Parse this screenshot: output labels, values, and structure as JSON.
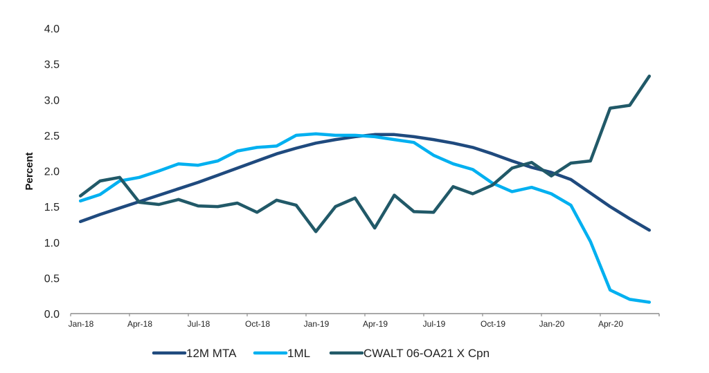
{
  "chart_data": {
    "type": "line",
    "title": "",
    "xlabel": "",
    "ylabel": "Percent",
    "ylim": [
      0,
      4.0
    ],
    "yticks": [
      "0.0",
      "0.5",
      "1.0",
      "1.5",
      "2.0",
      "2.5",
      "3.0",
      "3.5",
      "4.0"
    ],
    "grid": false,
    "legend_position": "bottom",
    "x": [
      "Jan-18",
      "Feb-18",
      "Mar-18",
      "Apr-18",
      "May-18",
      "Jun-18",
      "Jul-18",
      "Aug-18",
      "Sep-18",
      "Oct-18",
      "Nov-18",
      "Dec-18",
      "Jan-19",
      "Feb-19",
      "Mar-19",
      "Apr-19",
      "May-19",
      "Jun-19",
      "Jul-19",
      "Aug-19",
      "Sep-19",
      "Oct-19",
      "Nov-19",
      "Dec-19",
      "Jan-20",
      "Feb-20",
      "Mar-20",
      "Apr-20",
      "May-20",
      "Jun-20"
    ],
    "xtick_labels": [
      "Jan-18",
      "Apr-18",
      "Jul-18",
      "Oct-18",
      "Jan-19",
      "Apr-19",
      "Jul-19",
      "Oct-19",
      "Jan-20",
      "Apr-20"
    ],
    "series": [
      {
        "name": "12M MTA",
        "color": "#1f4a7e",
        "values": [
          1.29,
          1.39,
          1.48,
          1.57,
          1.66,
          1.75,
          1.84,
          1.94,
          2.04,
          2.14,
          2.24,
          2.32,
          2.39,
          2.44,
          2.48,
          2.51,
          2.51,
          2.48,
          2.44,
          2.39,
          2.33,
          2.24,
          2.14,
          2.05,
          1.98,
          1.88,
          1.69,
          1.5,
          1.33,
          1.17
        ]
      },
      {
        "name": "1ML",
        "color": "#00b0f0",
        "values": [
          1.58,
          1.67,
          1.86,
          1.91,
          2.0,
          2.1,
          2.08,
          2.14,
          2.28,
          2.33,
          2.35,
          2.5,
          2.52,
          2.5,
          2.5,
          2.48,
          2.44,
          2.4,
          2.22,
          2.1,
          2.02,
          1.83,
          1.71,
          1.77,
          1.68,
          1.52,
          1.01,
          0.33,
          0.2,
          0.16
        ]
      },
      {
        "name": "CWALT 06-OA21 X Cpn",
        "color": "#215968",
        "values": [
          1.65,
          1.86,
          1.91,
          1.56,
          1.53,
          1.6,
          1.51,
          1.5,
          1.55,
          1.42,
          1.59,
          1.52,
          1.15,
          1.5,
          1.62,
          1.2,
          1.66,
          1.43,
          1.42,
          1.78,
          1.68,
          1.8,
          2.04,
          2.12,
          1.93,
          2.11,
          2.14,
          2.88,
          2.92,
          3.33
        ]
      }
    ]
  }
}
